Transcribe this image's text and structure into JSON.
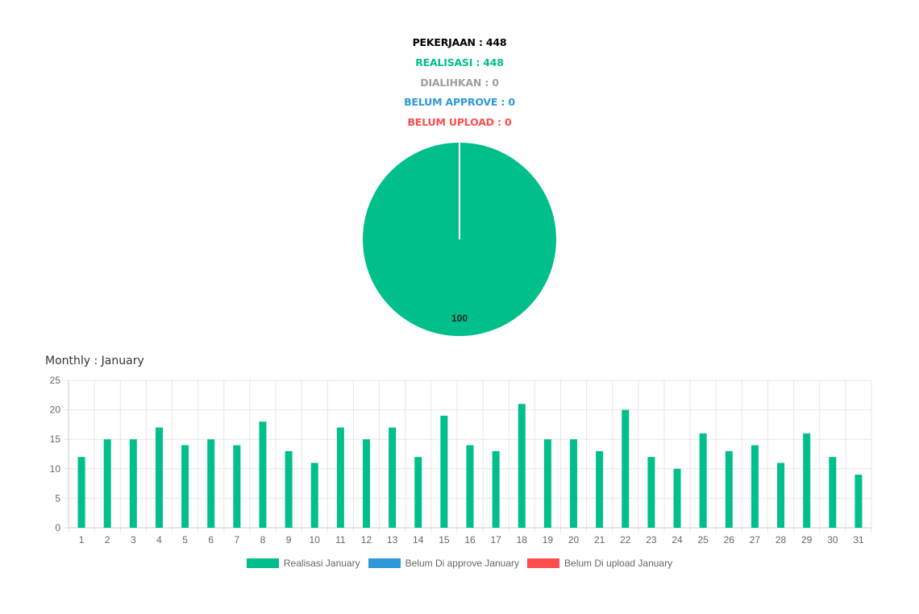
{
  "summary": {
    "pekerjaan": "PEKERJAAN : 448",
    "realisasi": "REALISASI : 448",
    "dialihkan": "DIALIHKAN : 0",
    "belum_approve": "BELUM APPROVE : 0",
    "belum_upload": "BELUM UPLOAD : 0"
  },
  "colors": {
    "pekerjaan": "#000000",
    "realisasi": "#00bf8a",
    "dialihkan": "#9e9e9e",
    "belum_approve": "#2e98d8",
    "belum_upload": "#ff4d4d",
    "grid": "#e6e6e6",
    "axis_text": "#666666"
  },
  "monthly_title": "Monthly : January",
  "chart_data": [
    {
      "type": "pie",
      "slices": [
        {
          "name": "Realisasi",
          "value": 100,
          "color": "#00bf8a"
        }
      ],
      "data_labels": [
        "100"
      ]
    },
    {
      "type": "bar",
      "categories": [
        "1",
        "2",
        "3",
        "4",
        "5",
        "6",
        "7",
        "8",
        "9",
        "10",
        "11",
        "12",
        "13",
        "14",
        "15",
        "16",
        "17",
        "18",
        "19",
        "20",
        "21",
        "22",
        "23",
        "24",
        "25",
        "26",
        "27",
        "28",
        "29",
        "30",
        "31"
      ],
      "series": [
        {
          "name": "Realisasi January",
          "color": "#00bf8a",
          "values": [
            12,
            15,
            15,
            17,
            14,
            15,
            14,
            18,
            13,
            11,
            17,
            15,
            17,
            12,
            19,
            14,
            13,
            21,
            15,
            15,
            13,
            20,
            12,
            10,
            16,
            13,
            14,
            11,
            16,
            12,
            9
          ]
        },
        {
          "name": "Belum Di approve January",
          "color": "#2e98d8",
          "values": [
            0,
            0,
            0,
            0,
            0,
            0,
            0,
            0,
            0,
            0,
            0,
            0,
            0,
            0,
            0,
            0,
            0,
            0,
            0,
            0,
            0,
            0,
            0,
            0,
            0,
            0,
            0,
            0,
            0,
            0,
            0
          ]
        },
        {
          "name": "Belum Di upload January",
          "color": "#ff4d4d",
          "values": [
            0,
            0,
            0,
            0,
            0,
            0,
            0,
            0,
            0,
            0,
            0,
            0,
            0,
            0,
            0,
            0,
            0,
            0,
            0,
            0,
            0,
            0,
            0,
            0,
            0,
            0,
            0,
            0,
            0,
            0,
            0
          ]
        }
      ],
      "yticks": [
        "0",
        "5",
        "10",
        "15",
        "20",
        "25"
      ],
      "ylim": [
        0,
        25
      ],
      "grid": true,
      "legend_position": "bottom"
    }
  ]
}
